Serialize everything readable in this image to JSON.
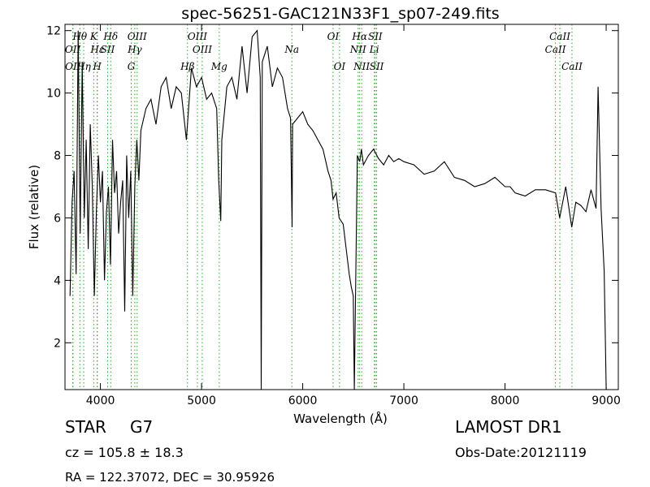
{
  "chart_data": {
    "type": "line",
    "title": "spec-56251-GAC121N33F1_sp07-249.fits",
    "xlabel": "Wavelength (Å)",
    "ylabel": "Flux (relative)",
    "xlim": [
      3650,
      9120
    ],
    "ylim": [
      0.5,
      12.2
    ],
    "xticks": [
      4000,
      5000,
      6000,
      7000,
      8000,
      9000
    ],
    "yticks": [
      2,
      4,
      6,
      8,
      10,
      12
    ],
    "grid": false,
    "line_color": "#000000",
    "marker_color": "#22aa22",
    "line_markers": [
      {
        "label": "Hθ",
        "x": 3797,
        "row": 0
      },
      {
        "label": "K",
        "x": 3934,
        "row": 0
      },
      {
        "label": "Hδ",
        "x": 4102,
        "row": 0
      },
      {
        "label": "OIII",
        "x": 4363,
        "row": 0
      },
      {
        "label": "OIII",
        "x": 4959,
        "row": 0
      },
      {
        "label": "OI",
        "x": 6300,
        "row": 0
      },
      {
        "label": "Hα",
        "x": 6563,
        "row": 0
      },
      {
        "label": "SII",
        "x": 6717,
        "row": 0
      },
      {
        "label": "CaII",
        "x": 8542,
        "row": 0
      },
      {
        "label": "OII",
        "x": 3727,
        "row": 1
      },
      {
        "label": "Hε",
        "x": 3970,
        "row": 1
      },
      {
        "label": "SII",
        "x": 4072,
        "row": 1
      },
      {
        "label": "Hγ",
        "x": 4340,
        "row": 1
      },
      {
        "label": "OIII",
        "x": 5007,
        "row": 1
      },
      {
        "label": "Na",
        "x": 5893,
        "row": 1
      },
      {
        "label": "NII",
        "x": 6548,
        "row": 1
      },
      {
        "label": "Li",
        "x": 6708,
        "row": 1
      },
      {
        "label": "CaII",
        "x": 8498,
        "row": 1
      },
      {
        "label": "OII",
        "x": 3729,
        "row": 2
      },
      {
        "label": "Hη",
        "x": 3835,
        "row": 2
      },
      {
        "label": "H",
        "x": 3968,
        "row": 2
      },
      {
        "label": "G",
        "x": 4305,
        "row": 2
      },
      {
        "label": "Hβ",
        "x": 4861,
        "row": 2
      },
      {
        "label": "Mg",
        "x": 5175,
        "row": 2
      },
      {
        "label": "OI",
        "x": 6364,
        "row": 2
      },
      {
        "label": "NII",
        "x": 6583,
        "row": 2
      },
      {
        "label": "SII",
        "x": 6731,
        "row": 2
      },
      {
        "label": "CaII",
        "x": 8662,
        "row": 2
      }
    ],
    "series": [
      {
        "x": [
          3700,
          3720,
          3740,
          3760,
          3780,
          3800,
          3820,
          3840,
          3860,
          3880,
          3900,
          3920,
          3940,
          3960,
          3980,
          4000,
          4020,
          4040,
          4060,
          4080,
          4100,
          4120,
          4140,
          4160,
          4180,
          4200,
          4220,
          4240,
          4260,
          4280,
          4300,
          4320,
          4340,
          4360,
          4380,
          4400,
          4450,
          4500,
          4550,
          4600,
          4650,
          4700,
          4750,
          4800,
          4850,
          4900,
          4950,
          5000,
          5050,
          5100,
          5150,
          5170,
          5190,
          5200,
          5250,
          5300,
          5350,
          5400,
          5450,
          5500,
          5550,
          5580,
          5590,
          5600,
          5650,
          5700,
          5750,
          5800,
          5850,
          5880,
          5895,
          5900,
          5950,
          6000,
          6050,
          6100,
          6150,
          6200,
          6250,
          6280,
          6300,
          6330,
          6360,
          6400,
          6430,
          6460,
          6480,
          6500,
          6510,
          6540,
          6563,
          6580,
          6600,
          6650,
          6700,
          6750,
          6800,
          6850,
          6900,
          6950,
          7000,
          7100,
          7200,
          7300,
          7400,
          7500,
          7600,
          7700,
          7800,
          7900,
          8000,
          8050,
          8100,
          8200,
          8300,
          8400,
          8500,
          8540,
          8600,
          8660,
          8700,
          8750,
          8800,
          8850,
          8900,
          8920,
          8950,
          8980,
          9000
        ],
        "y": [
          3.5,
          6.5,
          7.5,
          4.2,
          12,
          5.5,
          11,
          6,
          8.5,
          5,
          9,
          7,
          3.5,
          6.2,
          8,
          6.5,
          7.5,
          4,
          6.2,
          7,
          4.5,
          8.5,
          6.8,
          7.5,
          5.5,
          6.5,
          7.2,
          3,
          8,
          6,
          7.5,
          3.5,
          7,
          8.5,
          7.2,
          8.8,
          9.5,
          9.8,
          9,
          10.2,
          10.5,
          9.5,
          10.2,
          10,
          8.5,
          10.8,
          10.2,
          10.5,
          9.8,
          10,
          9.5,
          7.2,
          5.9,
          8.5,
          10.2,
          10.5,
          9.8,
          11.5,
          10,
          11.8,
          12,
          10.5,
          0.5,
          11,
          11.5,
          10.2,
          10.8,
          10.5,
          9.5,
          9.2,
          5.7,
          9,
          9.2,
          9.4,
          9,
          8.8,
          8.5,
          8.2,
          7.5,
          7.2,
          6.6,
          6.8,
          6,
          5.8,
          5,
          4.2,
          3.8,
          3.5,
          0.5,
          8,
          7.8,
          8.2,
          7.7,
          8,
          8.2,
          7.9,
          7.7,
          8,
          7.8,
          7.9,
          7.8,
          7.7,
          7.4,
          7.5,
          7.8,
          7.3,
          7.2,
          7.0,
          7.1,
          7.3,
          7.0,
          7.0,
          6.8,
          6.7,
          6.9,
          6.9,
          6.8,
          6.0,
          7.0,
          5.7,
          6.5,
          6.4,
          6.2,
          6.9,
          6.3,
          10.2,
          6.3,
          4.3,
          0.5
        ]
      }
    ]
  },
  "info": {
    "class_label": "STAR",
    "subclass_label": "G7",
    "survey_label": "LAMOST DR1",
    "redshift_text": "cz = 105.8  ± 18.3",
    "obs_date_text": "Obs-Date:20121119",
    "coords_text": "RA = 122.37072, DEC = 30.95926"
  }
}
